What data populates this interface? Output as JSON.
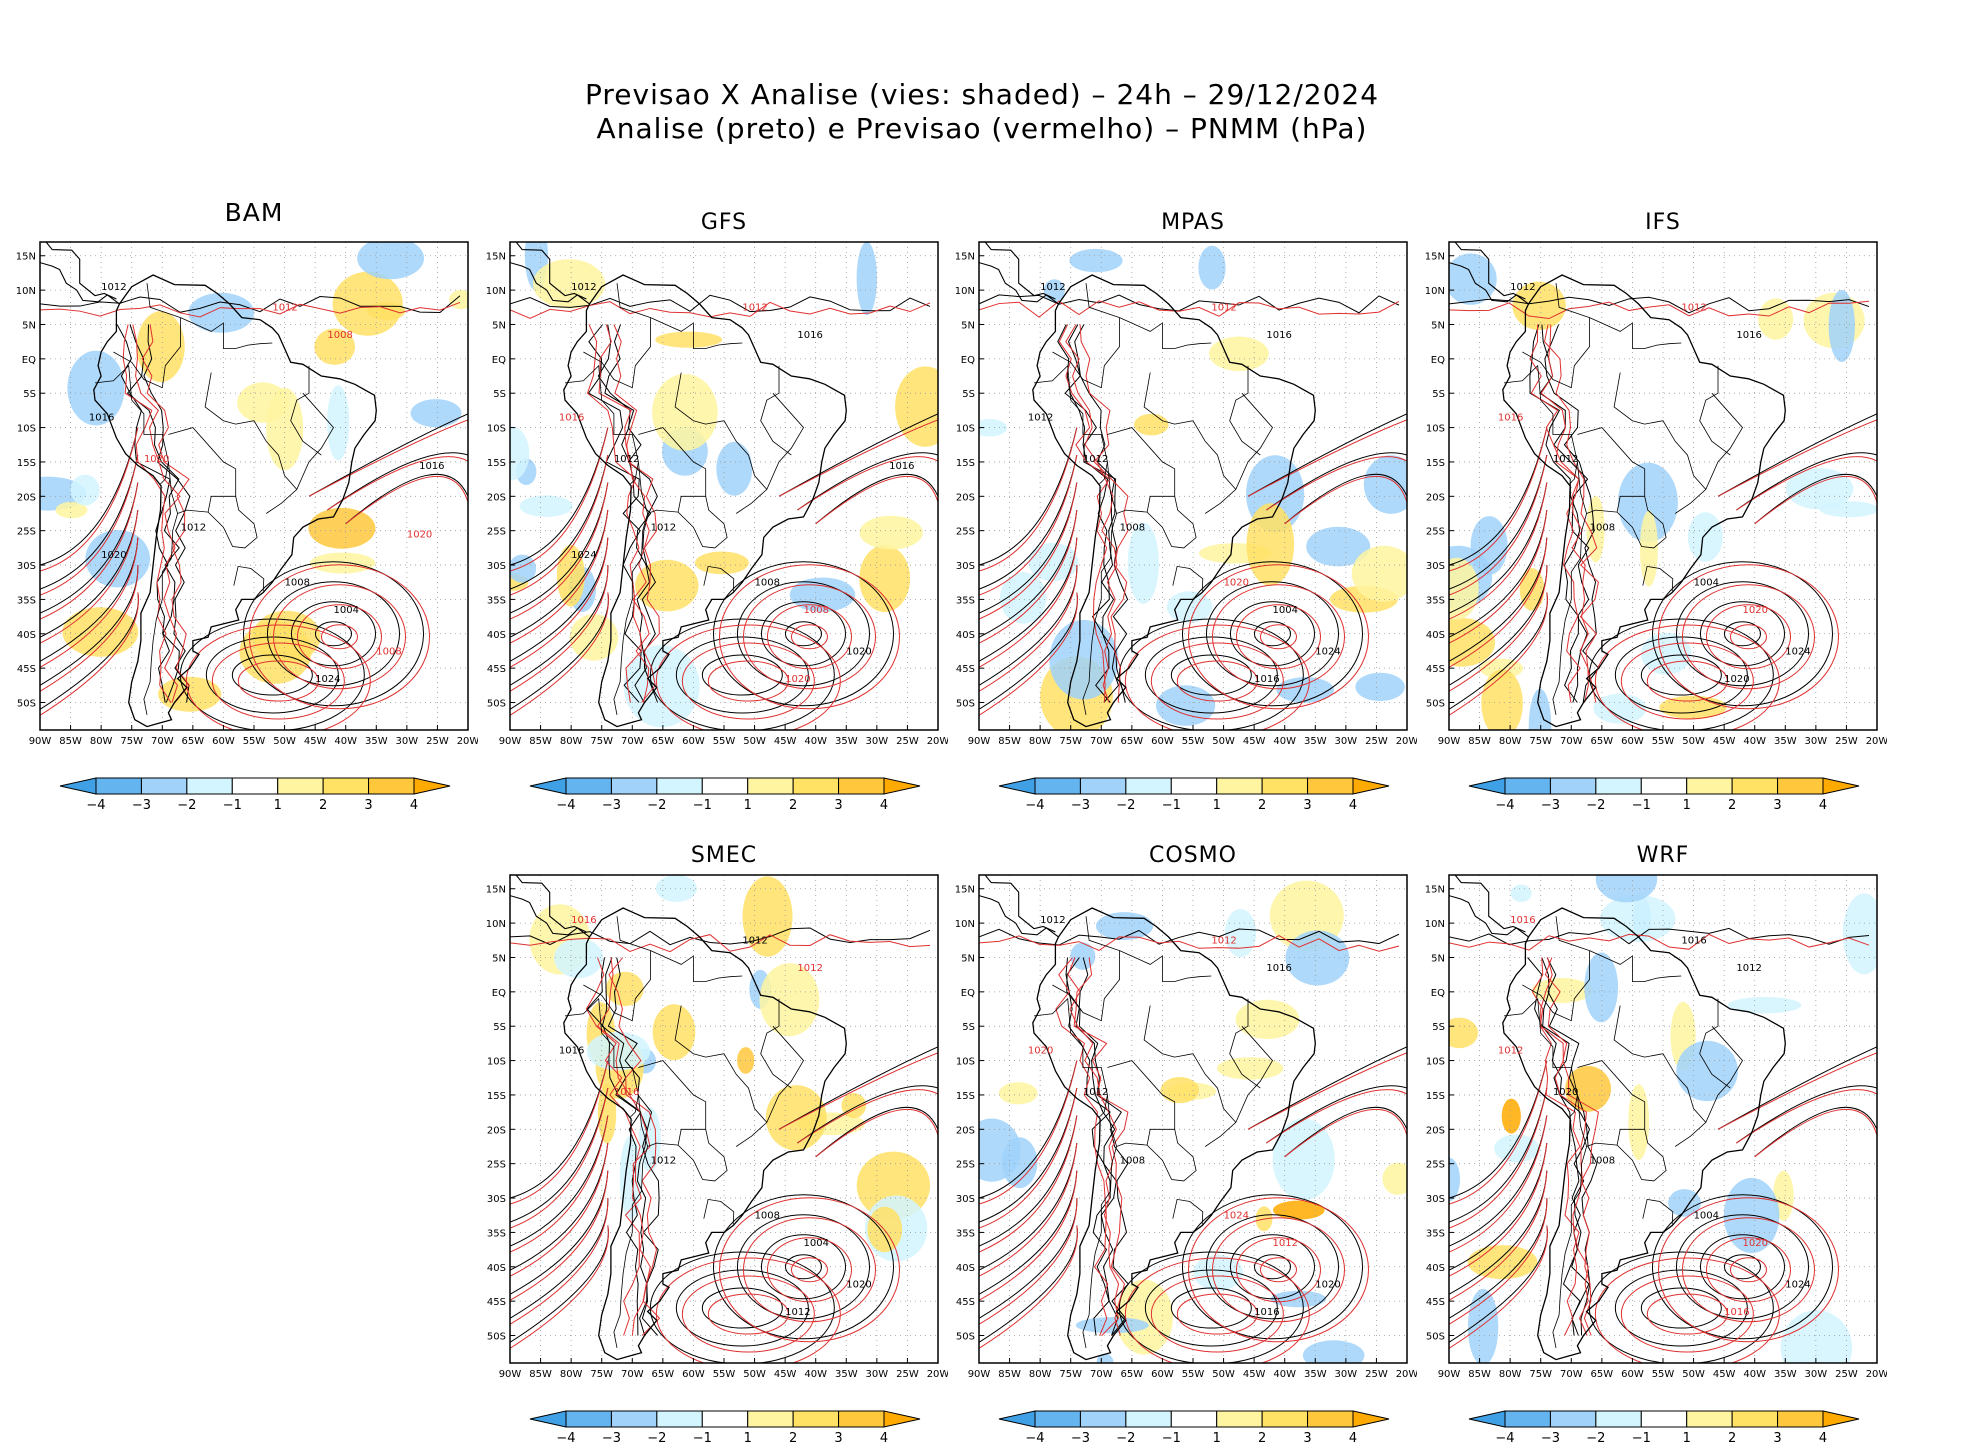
{
  "title": {
    "line1": "Previsao X Analise (vies: shaded) – 24h – 29/12/2024",
    "line2": "Analise (preto) e Previsao (vermelho) – PNMM (hPa)"
  },
  "axes": {
    "lat_labels": [
      "15N",
      "10N",
      "5N",
      "EQ",
      "5S",
      "10S",
      "15S",
      "20S",
      "25S",
      "30S",
      "35S",
      "40S",
      "45S",
      "50S"
    ],
    "lon_labels": [
      "90W",
      "85W",
      "80W",
      "75W",
      "70W",
      "65W",
      "60W",
      "55W",
      "50W",
      "45W",
      "40W",
      "35W",
      "30W",
      "25W",
      "20W"
    ]
  },
  "colorbar": {
    "labels": [
      "-4",
      "-3",
      "-2",
      "-1",
      "1",
      "2",
      "3",
      "4"
    ],
    "colors": [
      "#3fa0e6",
      "#64b4f0",
      "#a0d2fa",
      "#d2f5ff",
      "#ffffff",
      "#fff5a0",
      "#ffe164",
      "#ffc83c",
      "#ffaa00"
    ]
  },
  "colors": {
    "analysis": "#000000",
    "forecast": "#e03030"
  },
  "panels": [
    {
      "id": "bam",
      "name": "BAM",
      "isobars": [
        {
          "t": "1012",
          "c": "k"
        },
        {
          "t": "1012",
          "c": "r"
        },
        {
          "t": "1008",
          "c": "r"
        },
        {
          "t": "1016",
          "c": "k"
        },
        {
          "t": "1020",
          "c": "r"
        },
        {
          "t": "1012",
          "c": "k"
        },
        {
          "t": "1008",
          "c": "k"
        },
        {
          "t": "1004",
          "c": "k"
        },
        {
          "t": "1008",
          "c": "r"
        },
        {
          "t": "1024",
          "c": "k"
        },
        {
          "t": "1020",
          "c": "k"
        },
        {
          "t": "1016",
          "c": "k"
        },
        {
          "t": "1020",
          "c": "r"
        }
      ]
    },
    {
      "id": "gfs",
      "name": "GFS",
      "isobars": [
        {
          "t": "1012",
          "c": "k"
        },
        {
          "t": "1012",
          "c": "r"
        },
        {
          "t": "1016",
          "c": "k"
        },
        {
          "t": "1016",
          "c": "r"
        },
        {
          "t": "1012",
          "c": "k"
        },
        {
          "t": "1012",
          "c": "k"
        },
        {
          "t": "1008",
          "c": "k"
        },
        {
          "t": "1008",
          "c": "r"
        },
        {
          "t": "1020",
          "c": "k"
        },
        {
          "t": "1020",
          "c": "r"
        },
        {
          "t": "1024",
          "c": "k"
        },
        {
          "t": "1016",
          "c": "k"
        }
      ]
    },
    {
      "id": "mpas",
      "name": "MPAS",
      "isobars": [
        {
          "t": "1012",
          "c": "k"
        },
        {
          "t": "1012",
          "c": "r"
        },
        {
          "t": "1016",
          "c": "k"
        },
        {
          "t": "1012",
          "c": "k"
        },
        {
          "t": "1012",
          "c": "k"
        },
        {
          "t": "1008",
          "c": "k"
        },
        {
          "t": "1020",
          "c": "r"
        },
        {
          "t": "1004",
          "c": "k"
        },
        {
          "t": "1024",
          "c": "k"
        },
        {
          "t": "1016",
          "c": "k"
        }
      ]
    },
    {
      "id": "ifs",
      "name": "IFS",
      "isobars": [
        {
          "t": "1012",
          "c": "k"
        },
        {
          "t": "1012",
          "c": "r"
        },
        {
          "t": "1016",
          "c": "k"
        },
        {
          "t": "1016",
          "c": "r"
        },
        {
          "t": "1012",
          "c": "k"
        },
        {
          "t": "1008",
          "c": "k"
        },
        {
          "t": "1004",
          "c": "k"
        },
        {
          "t": "1020",
          "c": "r"
        },
        {
          "t": "1024",
          "c": "k"
        },
        {
          "t": "1020",
          "c": "k"
        }
      ]
    },
    {
      "id": "smec",
      "name": "SMEC",
      "isobars": [
        {
          "t": "1016",
          "c": "r"
        },
        {
          "t": "1012",
          "c": "k"
        },
        {
          "t": "1012",
          "c": "r"
        },
        {
          "t": "1016",
          "c": "k"
        },
        {
          "t": "1016",
          "c": "r"
        },
        {
          "t": "1012",
          "c": "k"
        },
        {
          "t": "1008",
          "c": "k"
        },
        {
          "t": "1004",
          "c": "k"
        },
        {
          "t": "1020",
          "c": "k"
        },
        {
          "t": "1012",
          "c": "k"
        }
      ]
    },
    {
      "id": "cosmo",
      "name": "COSMO",
      "isobars": [
        {
          "t": "1012",
          "c": "k"
        },
        {
          "t": "1012",
          "c": "r"
        },
        {
          "t": "1016",
          "c": "k"
        },
        {
          "t": "1020",
          "c": "r"
        },
        {
          "t": "1012",
          "c": "k"
        },
        {
          "t": "1008",
          "c": "k"
        },
        {
          "t": "1024",
          "c": "r"
        },
        {
          "t": "1012",
          "c": "r"
        },
        {
          "t": "1020",
          "c": "k"
        },
        {
          "t": "1016",
          "c": "k"
        }
      ]
    },
    {
      "id": "wrf",
      "name": "WRF",
      "isobars": [
        {
          "t": "1016",
          "c": "r"
        },
        {
          "t": "1016",
          "c": "k"
        },
        {
          "t": "1012",
          "c": "k"
        },
        {
          "t": "1012",
          "c": "r"
        },
        {
          "t": "1020",
          "c": "k"
        },
        {
          "t": "1008",
          "c": "k"
        },
        {
          "t": "1004",
          "c": "k"
        },
        {
          "t": "1020",
          "c": "r"
        },
        {
          "t": "1024",
          "c": "k"
        },
        {
          "t": "1016",
          "c": "r"
        }
      ]
    }
  ]
}
